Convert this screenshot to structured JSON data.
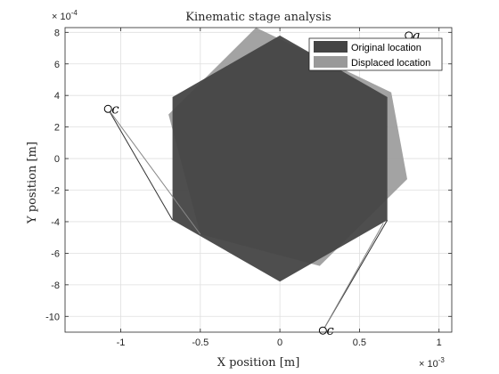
{
  "chart_data": {
    "type": "area",
    "title": "Kinematic stage analysis",
    "xlabel": "X position [m]",
    "ylabel": "Y position [m]",
    "x_exponent": "× 10^{-3}",
    "y_exponent": "× 10^{-4}",
    "x_exponent_base": "× 10",
    "x_exponent_power": "-3",
    "y_exponent_base": "× 10",
    "y_exponent_power": "-4",
    "xlim": [
      -1.35,
      1.08
    ],
    "ylim": [
      -11,
      8.3
    ],
    "xticks": [
      -1,
      -0.5,
      0,
      0.5,
      1
    ],
    "xtick_labels": [
      "-1",
      "-0.5",
      "0",
      "0.5",
      "1"
    ],
    "yticks": [
      -10,
      -8,
      -6,
      -4,
      -2,
      0,
      2,
      4,
      6,
      8
    ],
    "ytick_labels": [
      "-10",
      "-8",
      "-6",
      "-4",
      "-2",
      "0",
      "2",
      "4",
      "6",
      "8"
    ],
    "grid": true,
    "legend_position": "top-right",
    "series": [
      {
        "name": "Original location",
        "color": "#444444",
        "polygon": [
          [
            0,
            7.8
          ],
          [
            0.675,
            3.9
          ],
          [
            0.675,
            -3.9
          ],
          [
            0,
            -7.8
          ],
          [
            -0.675,
            -3.9
          ],
          [
            -0.675,
            3.9
          ]
        ]
      },
      {
        "name": "Displaced location",
        "color": "#999999",
        "polygon": [
          [
            -0.15,
            8.3
          ],
          [
            0.7,
            4.2
          ],
          [
            0.8,
            -1.3
          ],
          [
            0.25,
            -6.8
          ],
          [
            -0.5,
            -4.8
          ],
          [
            -0.7,
            2.8
          ]
        ]
      }
    ],
    "anchors": [
      {
        "label": "a",
        "point": [
          0.81,
          7.8
        ]
      },
      {
        "label": "c",
        "point": [
          -1.08,
          3.15
        ]
      },
      {
        "label": "c",
        "point": [
          0.27,
          -10.9
        ]
      }
    ],
    "links": [
      {
        "from": [
          -1.08,
          3.15
        ],
        "to": [
          -0.675,
          -3.9
        ],
        "series": 0
      },
      {
        "from": [
          -1.08,
          3.15
        ],
        "to": [
          -0.5,
          -4.8
        ],
        "series": 1
      },
      {
        "from": [
          0.27,
          -10.9
        ],
        "to": [
          0.675,
          -3.9
        ],
        "series": 0
      },
      {
        "from": [
          0.27,
          -10.9
        ],
        "to": [
          0.65,
          -4.1
        ],
        "series": 1
      }
    ],
    "colors": {
      "axes": "#262626",
      "grid": "#dfdfdf",
      "link_original": "#333333",
      "link_displaced": "#888888"
    }
  }
}
